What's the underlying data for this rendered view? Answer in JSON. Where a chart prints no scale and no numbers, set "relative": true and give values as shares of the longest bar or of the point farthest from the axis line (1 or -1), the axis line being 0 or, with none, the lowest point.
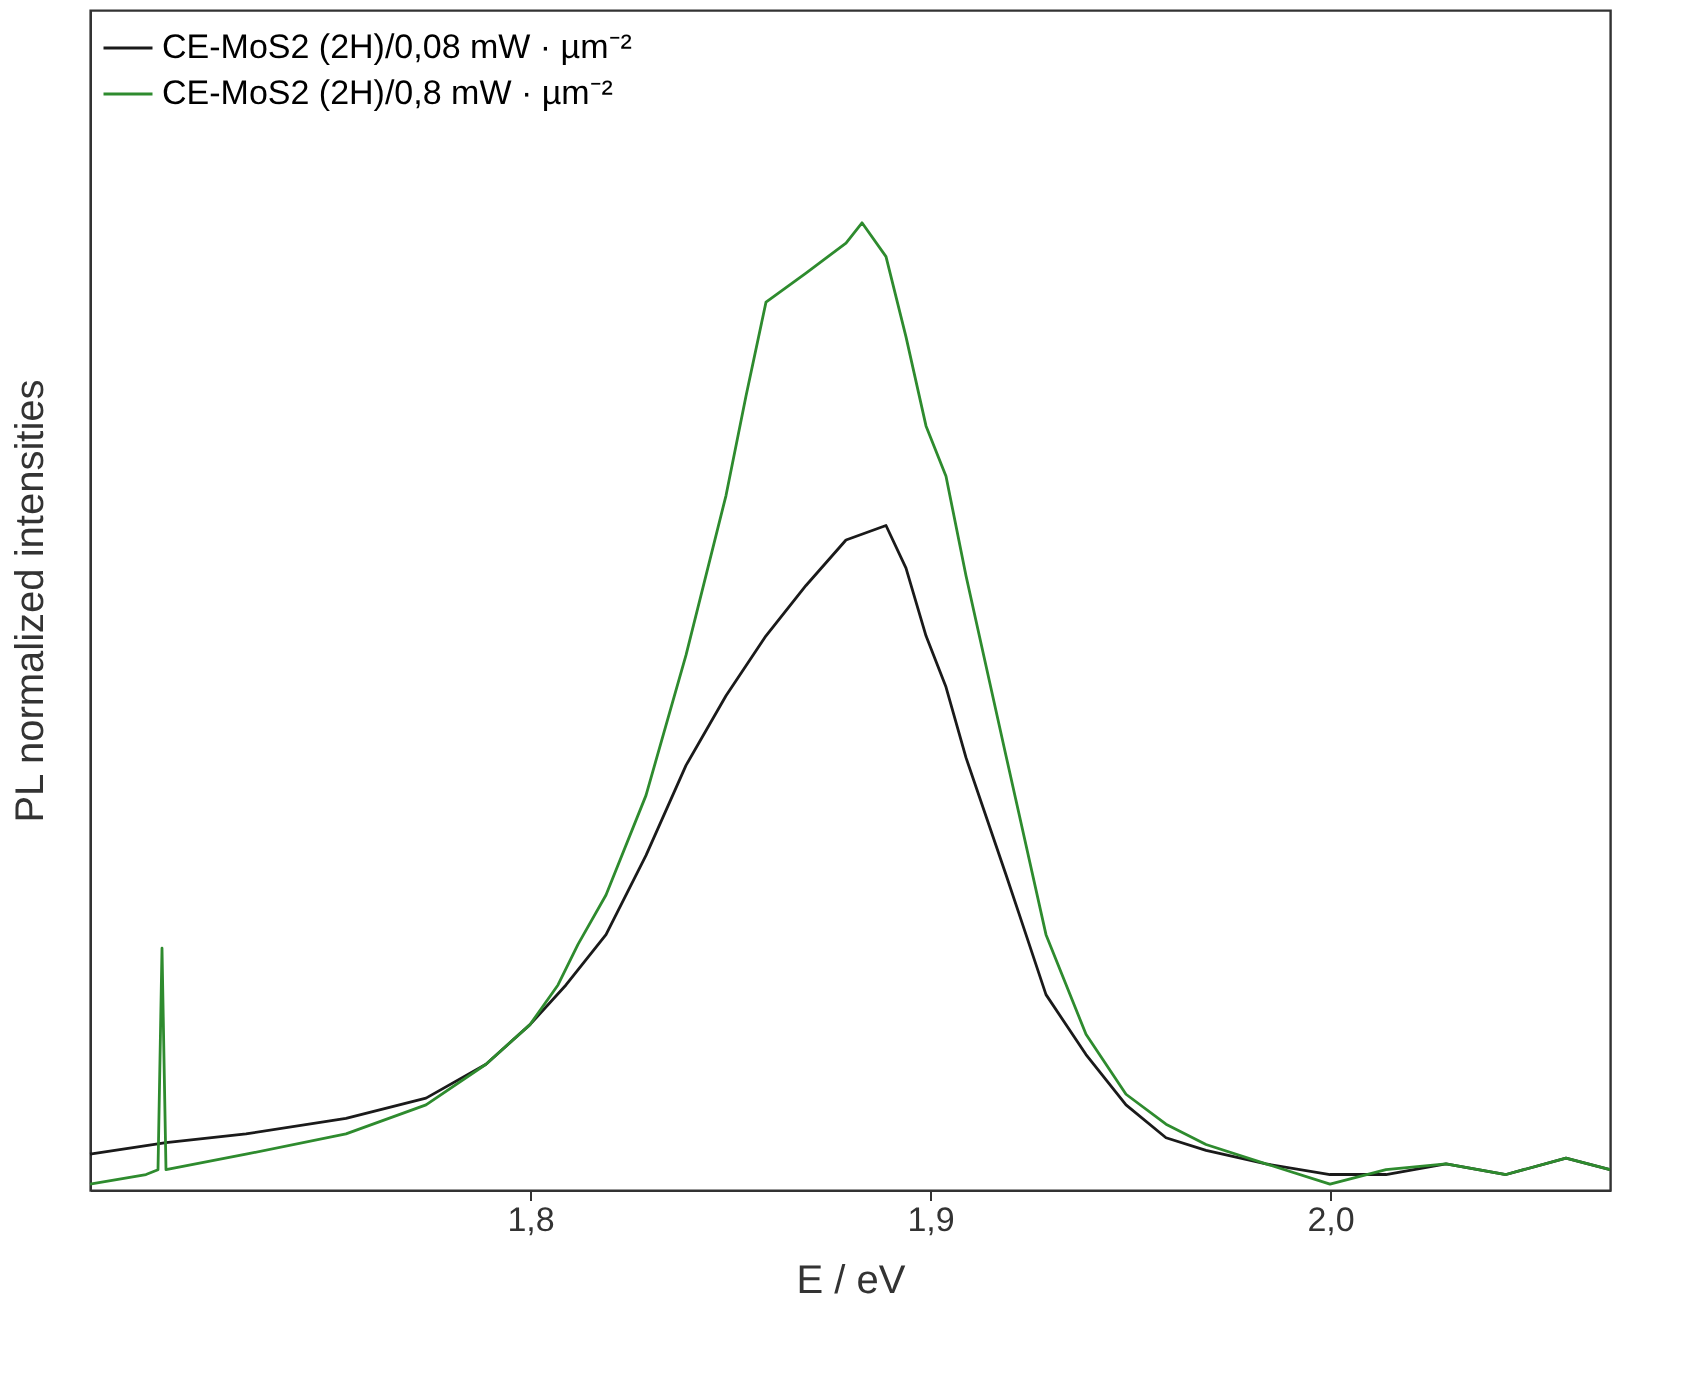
{
  "chart_data": {
    "type": "line",
    "relative": true,
    "xlabel": "E / eV",
    "ylabel": "PL normalized intensities",
    "xlim": [
      1.69,
      2.07
    ],
    "xticks": [
      {
        "value": 1.8,
        "label": "1,8"
      },
      {
        "value": 1.9,
        "label": "1,9"
      },
      {
        "value": 2.0,
        "label": "2,0"
      }
    ],
    "grid": false,
    "legend": "top left",
    "marker": "none",
    "line_style": "solid",
    "tick_labels": "x",
    "series": [
      {
        "name": "CE-MoS2 (2H)/0,08 mW · µm⁻²",
        "color": "#1a1a1a",
        "x": [
          1.69,
          1.709,
          1.729,
          1.754,
          1.774,
          1.789,
          1.8,
          1.809,
          1.819,
          1.829,
          1.839,
          1.849,
          1.859,
          1.869,
          1.879,
          1.889,
          1.894,
          1.899,
          1.904,
          1.909,
          1.919,
          1.929,
          1.939,
          1.949,
          1.959,
          1.969,
          1.984,
          2.0,
          2.014,
          2.029,
          2.044,
          2.059,
          2.07
        ],
        "values": [
          0.037,
          0.049,
          0.058,
          0.074,
          0.095,
          0.13,
          0.171,
          0.212,
          0.264,
          0.346,
          0.439,
          0.511,
          0.573,
          0.625,
          0.672,
          0.687,
          0.643,
          0.573,
          0.52,
          0.447,
          0.326,
          0.202,
          0.14,
          0.088,
          0.054,
          0.041,
          0.027,
          0.016,
          0.016,
          0.027,
          0.016,
          0.033,
          0.021
        ]
      },
      {
        "name": "CE-MoS2 (2H)/0,8 mW · µm⁻²",
        "color": "#2e8b2e",
        "x": [
          1.69,
          1.704,
          1.707,
          1.708,
          1.709,
          1.729,
          1.754,
          1.774,
          1.789,
          1.8,
          1.807,
          1.812,
          1.819,
          1.829,
          1.839,
          1.849,
          1.854,
          1.859,
          1.869,
          1.879,
          1.883,
          1.889,
          1.894,
          1.899,
          1.904,
          1.909,
          1.919,
          1.929,
          1.939,
          1.949,
          1.959,
          1.969,
          1.984,
          2.0,
          2.014,
          2.029,
          2.044,
          2.059,
          2.07
        ],
        "values": [
          0.006,
          0.016,
          0.021,
          0.25,
          0.021,
          0.037,
          0.058,
          0.088,
          0.13,
          0.171,
          0.212,
          0.254,
          0.305,
          0.408,
          0.553,
          0.718,
          0.821,
          0.918,
          0.948,
          0.979,
          1,
          0.965,
          0.882,
          0.79,
          0.738,
          0.635,
          0.449,
          0.264,
          0.161,
          0.099,
          0.068,
          0.047,
          0.027,
          0.006,
          0.021,
          0.027,
          0.016,
          0.033,
          0.021
        ]
      }
    ]
  }
}
